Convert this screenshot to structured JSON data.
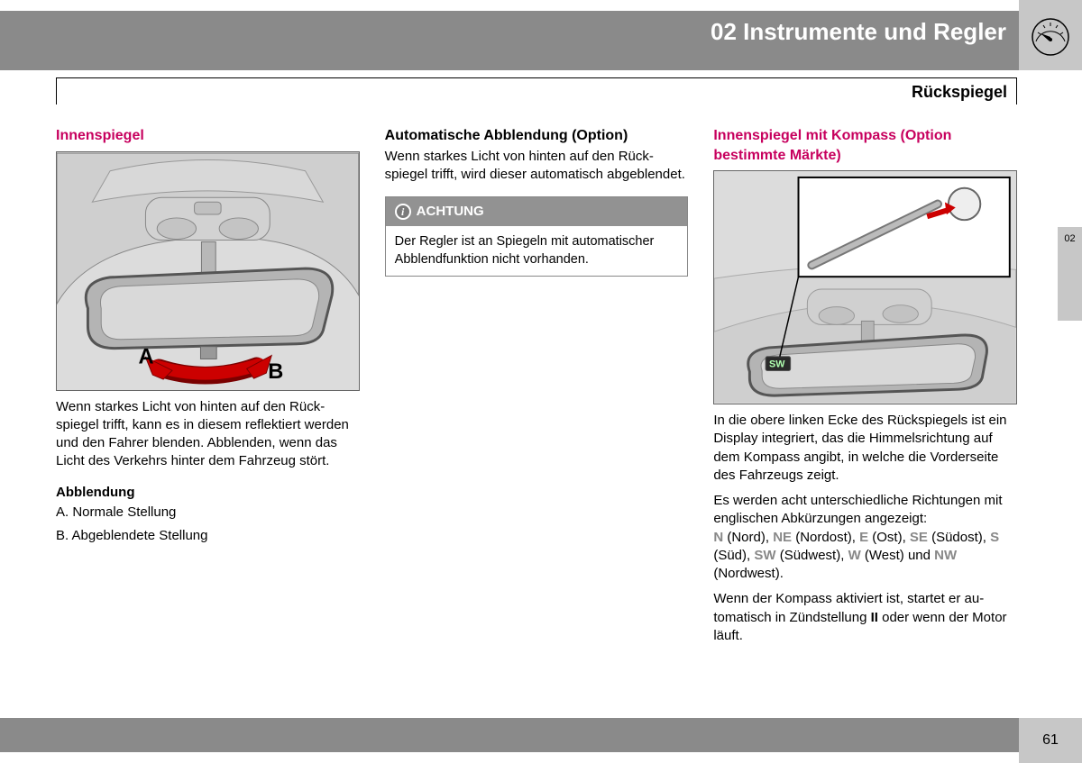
{
  "chapter_title": "02 Instrumente und Regler",
  "section_title": "Rückspiegel",
  "side_tab": "02",
  "page_number": "61",
  "col1": {
    "heading": "Innenspiegel",
    "label_a": "A",
    "label_b": "B",
    "para1": "Wenn starkes Licht von hinten auf den Rück­spiegel trifft, kann es in diesem reflektiert wer­den und den Fahrer blenden. Abblenden, wenn das Licht des Verkehrs hinter dem Fahr­zeug stört.",
    "subhead": "Abblendung",
    "item_a": "A. Normale Stellung",
    "item_b": "B. Abgeblendete Stellung"
  },
  "col2": {
    "heading": "Automatische Abblendung (Option)",
    "para1": "Wenn starkes Licht von hinten auf den Rück­spiegel trifft, wird dieser automatisch abge­blendet.",
    "notice_title": "ACHTUNG",
    "notice_body": "Der Regler ist an Spiegeln mit automati­scher Abblendfunktion nicht vorhanden."
  },
  "col3": {
    "heading": "Innenspiegel mit Kompass (Option bestimmte Märkte)",
    "compass_label": "SW",
    "para1": "In die obere linken Ecke des Rückspiegels ist ein Display integriert, das die Himmelsrichtung auf dem Kompass angibt, in welche die Vor­derseite des Fahrzeugs zeigt.",
    "para2_pre": "Es werden acht unterschiedliche Richtungen mit englischen Abkürzungen angezeigt:",
    "directions": [
      {
        "abbr": "N",
        "name": " (Nord), "
      },
      {
        "abbr": "NE",
        "name": " (Nordost), "
      },
      {
        "abbr": "E",
        "name": " (Ost), "
      },
      {
        "abbr": "SE",
        "name": " (Südost), "
      },
      {
        "abbr": "S",
        "name": " (Süd), "
      },
      {
        "abbr": "SW",
        "name": " (Südwest), "
      },
      {
        "abbr": "W",
        "name": " (West) und "
      },
      {
        "abbr": "NW",
        "name": " (Nordwest)."
      }
    ],
    "para3_a": "Wenn der Kompass aktiviert ist, startet er au­tomatisch in Zündstellung ",
    "para3_bold": "II",
    "para3_b": " oder wenn der Motor läuft."
  }
}
